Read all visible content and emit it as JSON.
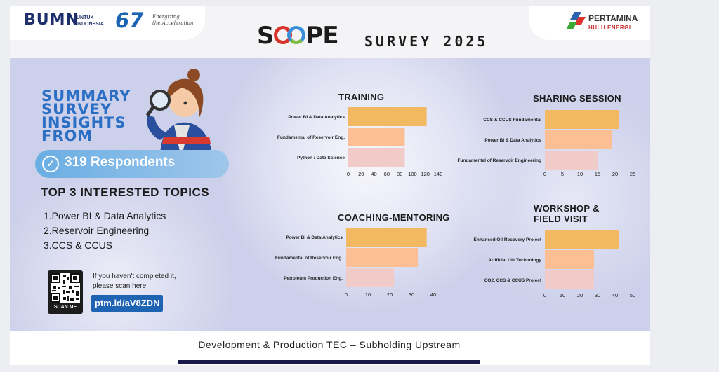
{
  "header": {
    "bumn_logo": "BUMN",
    "bumn_sub_line1": "UNTUK",
    "bumn_sub_line2": "INDONESIA",
    "anniversary_number": "67",
    "anniversary_tagline_line1": "Energizing",
    "anniversary_tagline_line2": "the Acceleration",
    "survey_title": "SURVEY 2025",
    "pertamina_name": "PERTAMINA",
    "pertamina_sub": "HULU ENERGI",
    "colors": {
      "scope_red": "#d9342b",
      "scope_blue": "#3a8fd8",
      "scope_green": "#7dbb42"
    }
  },
  "left_panel": {
    "summary_title": "SUMMARY SURVEY INSIGHTS FROM",
    "respondents": "319 Respondents",
    "top3_title": "TOP 3 INTERESTED TOPICS",
    "top3_items": [
      "1.Power BI & Data Analytics",
      "2.Reservoir Engineering",
      "3.CCS & CCUS"
    ],
    "scan_prompt_line1": "If you haven't completed it,",
    "scan_prompt_line2": "please scan here.",
    "qr_label": "SCAN ME",
    "link": "ptm.id/aV8ZDN"
  },
  "footer": {
    "text": "Development & Production TEC – Subholding Upstream"
  },
  "chart_data": [
    {
      "type": "bar",
      "orientation": "horizontal",
      "title": "TRAINING",
      "categories": [
        "Power BI & Data Analytics",
        "Fundamental of Reservoir Eng.",
        "Python / Data Science"
      ],
      "values": [
        122,
        88,
        88
      ],
      "xlim": [
        0,
        140
      ],
      "xticks": [
        0,
        20,
        40,
        60,
        80,
        100,
        120,
        140
      ],
      "colors": [
        "#f2b862",
        "#fcbf93",
        "#f1cbc8"
      ]
    },
    {
      "type": "bar",
      "orientation": "horizontal",
      "title": "SHARING SESSION",
      "categories": [
        "CCS & CCUS Fundamental",
        "Power BI & Data Analytics",
        "Fundamental of Reservoir Engineering"
      ],
      "values": [
        21,
        19,
        15
      ],
      "xlim": [
        0,
        25
      ],
      "xticks": [
        0,
        5,
        10,
        15,
        20,
        25
      ],
      "colors": [
        "#f2b862",
        "#fcbf93",
        "#f1cbc8"
      ]
    },
    {
      "type": "bar",
      "orientation": "horizontal",
      "title": "COACHING-MENTORING",
      "categories": [
        "Power BI & Data Analytics",
        "Fundamental of Reservoir Eng.",
        "Petroleum Production Eng."
      ],
      "values": [
        37,
        33,
        22
      ],
      "xlim": [
        0,
        40
      ],
      "xticks": [
        0,
        10,
        20,
        30,
        40
      ],
      "colors": [
        "#f2b862",
        "#fcbf93",
        "#f1cbc8"
      ]
    },
    {
      "type": "bar",
      "orientation": "horizontal",
      "title": "WORKSHOP & FIELD VISIT",
      "title_lines": [
        "WORKSHOP &",
        "FIELD VISIT"
      ],
      "categories": [
        "Enhanced Oil Recovery Project",
        "Artificial Lift Technology",
        "CO2, CCS & CCUS Project"
      ],
      "values": [
        42,
        28,
        28
      ],
      "xlim": [
        0,
        50
      ],
      "xticks": [
        0,
        10,
        20,
        30,
        40,
        50
      ],
      "colors": [
        "#f2b862",
        "#fcbf93",
        "#f1cbc8"
      ]
    }
  ]
}
